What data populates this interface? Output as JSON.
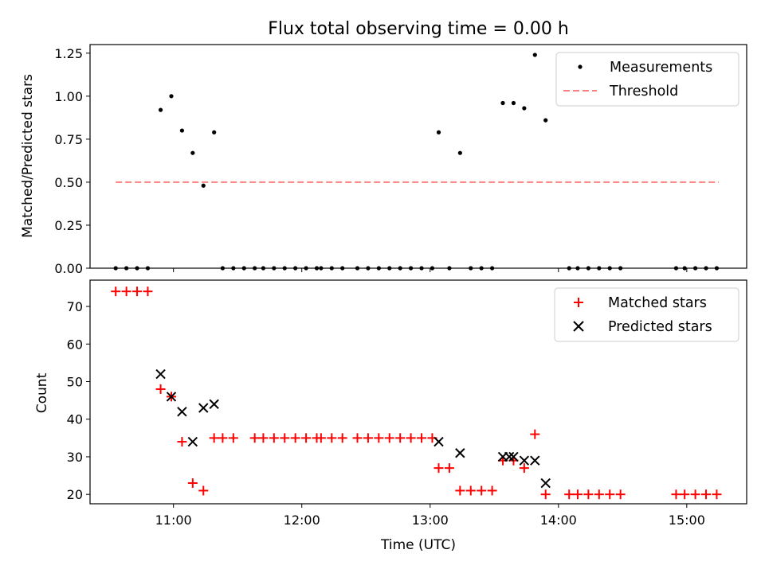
{
  "chart_data": [
    {
      "type": "scatter",
      "title": "Flux total observing time = 0.00 h",
      "ylabel": "Matched/Predicted stars",
      "ylim": [
        0.0,
        1.3
      ],
      "yticks": [
        "0.00",
        "0.25",
        "0.50",
        "0.75",
        "1.00",
        "1.25"
      ],
      "ytick_values": [
        0,
        0.25,
        0.5,
        0.75,
        1.0,
        1.25
      ],
      "legend_position": "upper right",
      "legend": [
        "Measurements",
        "Threshold"
      ],
      "threshold": {
        "name": "Threshold",
        "value": 0.5,
        "x_range": [
          "10:33",
          "15:15"
        ],
        "color": "#ff8080"
      },
      "series": [
        {
          "name": "Measurements",
          "color": "#000000",
          "x": [
            "10:33",
            "10:38",
            "10:43",
            "10:48",
            "10:54",
            "10:59",
            "11:04",
            "11:09",
            "11:14",
            "11:19",
            "11:23",
            "11:28",
            "11:33",
            "11:38",
            "11:42",
            "11:47",
            "11:52",
            "11:57",
            "12:02",
            "12:07",
            "12:09",
            "12:14",
            "12:19",
            "12:26",
            "12:31",
            "12:36",
            "12:41",
            "12:46",
            "12:51",
            "12:56",
            "13:01",
            "13:04",
            "13:09",
            "13:14",
            "13:19",
            "13:24",
            "13:29",
            "13:34",
            "13:39",
            "13:44",
            "13:49",
            "13:54",
            "14:05",
            "14:09",
            "14:14",
            "14:19",
            "14:24",
            "14:29",
            "14:55",
            "14:59",
            "15:04",
            "15:09",
            "15:14"
          ],
          "y": [
            0,
            0,
            0,
            0,
            0.92,
            1.0,
            0.8,
            0.67,
            0.48,
            0.79,
            0,
            0,
            0,
            0,
            0,
            0,
            0,
            0,
            0,
            0,
            0,
            0,
            0,
            0,
            0,
            0,
            0,
            0,
            0,
            0,
            0,
            0.79,
            0,
            0.67,
            0,
            0,
            0,
            0.96,
            0.96,
            0.93,
            1.24,
            0.86,
            0,
            0,
            0,
            0,
            0,
            0,
            0,
            0,
            0,
            0,
            0
          ]
        }
      ]
    },
    {
      "type": "scatter",
      "xlabel": "Time (UTC)",
      "ylabel": "Count",
      "ylim": [
        17.5,
        77
      ],
      "yticks": [
        "20",
        "30",
        "40",
        "50",
        "60",
        "70"
      ],
      "ytick_values": [
        20,
        30,
        40,
        50,
        60,
        70
      ],
      "xlim": [
        "10:21",
        "15:28"
      ],
      "xticks": [
        "11:00",
        "12:00",
        "13:00",
        "14:00",
        "15:00"
      ],
      "legend_position": "upper right",
      "legend": [
        "Matched stars",
        "Predicted stars"
      ],
      "series": [
        {
          "name": "Matched stars",
          "marker": "+",
          "color": "#ff0000",
          "x": [
            "10:33",
            "10:38",
            "10:43",
            "10:48",
            "10:54",
            "10:59",
            "11:04",
            "11:09",
            "11:14",
            "11:19",
            "11:23",
            "11:28",
            "11:38",
            "11:42",
            "11:47",
            "11:52",
            "11:57",
            "12:02",
            "12:07",
            "12:09",
            "12:14",
            "12:19",
            "12:26",
            "12:31",
            "12:36",
            "12:41",
            "12:46",
            "12:51",
            "12:56",
            "13:01",
            "13:04",
            "13:09",
            "13:14",
            "13:19",
            "13:24",
            "13:29",
            "13:34",
            "13:39",
            "13:44",
            "13:49",
            "13:54",
            "14:05",
            "14:09",
            "14:14",
            "14:19",
            "14:24",
            "14:29",
            "14:55",
            "14:59",
            "15:04",
            "15:09",
            "15:14"
          ],
          "y": [
            74,
            74,
            74,
            74,
            48,
            46,
            34,
            23,
            21,
            35,
            35,
            35,
            35,
            35,
            35,
            35,
            35,
            35,
            35,
            35,
            35,
            35,
            35,
            35,
            35,
            35,
            35,
            35,
            35,
            35,
            27,
            27,
            21,
            21,
            21,
            21,
            29,
            29,
            27,
            36,
            20,
            20,
            20,
            20,
            20,
            20,
            20,
            20,
            20,
            20,
            20,
            20
          ]
        },
        {
          "name": "Predicted stars",
          "marker": "x",
          "color": "#000000",
          "x": [
            "10:54",
            "10:59",
            "11:04",
            "11:09",
            "11:14",
            "11:19",
            "13:04",
            "13:14",
            "13:34",
            "13:37",
            "13:39",
            "13:44",
            "13:49",
            "13:54"
          ],
          "y": [
            52,
            46,
            42,
            34,
            43,
            44,
            34,
            31,
            30,
            30,
            30,
            29,
            29,
            23
          ]
        }
      ]
    }
  ]
}
